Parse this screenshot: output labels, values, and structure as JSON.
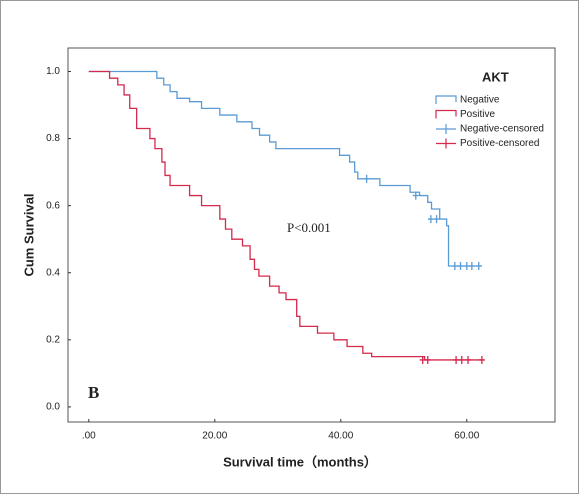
{
  "chart_data": {
    "type": "step",
    "label": "B",
    "annotation": "P<0.001",
    "xlabel": "Survival time（months）",
    "ylabel": "Cum Survival",
    "legend_title": "AKT",
    "legend_position": "upper right",
    "xlim": [
      -3.3,
      74
    ],
    "ylim": [
      -0.045,
      1.07
    ],
    "xticks": [
      {
        "value": 0,
        "label": ".00"
      },
      {
        "value": 20,
        "label": "20.00"
      },
      {
        "value": 40,
        "label": "40.00"
      },
      {
        "value": 60,
        "label": "60.00"
      }
    ],
    "yticks": [
      {
        "value": 0,
        "label": "0.0"
      },
      {
        "value": 0.2,
        "label": "0.2"
      },
      {
        "value": 0.4,
        "label": "0.4"
      },
      {
        "value": 0.6,
        "label": "0.6"
      },
      {
        "value": 0.8,
        "label": "0.8"
      },
      {
        "value": 1,
        "label": "1.0"
      }
    ],
    "series": [
      {
        "name": "Negative",
        "color": "#5b9bd5",
        "kind": "step",
        "x": [
          0,
          10.8,
          11.9,
          12.9,
          14.0,
          16.0,
          17.9,
          20.8,
          23.5,
          25.9,
          27.1,
          28.7,
          29.7,
          39.8,
          41.4,
          42.2,
          42.7,
          46.2,
          51.0,
          52.5,
          53.8,
          54.4,
          55.7,
          56.8,
          57.1,
          62.4
        ],
        "values": [
          1.0,
          0.98,
          0.96,
          0.94,
          0.92,
          0.91,
          0.89,
          0.87,
          0.85,
          0.83,
          0.81,
          0.79,
          0.77,
          0.75,
          0.73,
          0.7,
          0.68,
          0.66,
          0.64,
          0.63,
          0.61,
          0.59,
          0.56,
          0.54,
          0.42,
          0.42
        ]
      },
      {
        "name": "Positive",
        "color": "#d42a4e",
        "kind": "step",
        "x": [
          0,
          3.3,
          4.6,
          5.6,
          6.5,
          7.6,
          9.7,
          10.5,
          11.6,
          12.1,
          12.9,
          16.0,
          17.9,
          20.8,
          21.7,
          22.7,
          24.4,
          25.6,
          26.3,
          27.0,
          28.7,
          30.2,
          31.3,
          33.0,
          33.5,
          36.3,
          38.9,
          41.0,
          43.5,
          44.9,
          53.3,
          62.7
        ],
        "values": [
          1.0,
          0.98,
          0.96,
          0.93,
          0.89,
          0.83,
          0.8,
          0.77,
          0.73,
          0.69,
          0.66,
          0.63,
          0.6,
          0.56,
          0.53,
          0.5,
          0.48,
          0.44,
          0.41,
          0.39,
          0.36,
          0.34,
          0.32,
          0.27,
          0.24,
          0.22,
          0.2,
          0.18,
          0.16,
          0.15,
          0.14,
          0.14
        ]
      },
      {
        "name": "Negative-censored",
        "color": "#5b9bd5",
        "kind": "censor",
        "x": [
          44.1,
          51.9,
          54.3,
          55.2,
          58.1,
          59.0,
          60.0,
          60.8,
          61.9
        ],
        "values": [
          0.68,
          0.63,
          0.56,
          0.56,
          0.42,
          0.42,
          0.42,
          0.42,
          0.42
        ]
      },
      {
        "name": "Positive-censored",
        "color": "#d42a4e",
        "kind": "censor",
        "x": [
          53.0,
          53.8,
          58.3,
          59.2,
          60.2,
          62.4
        ],
        "values": [
          0.14,
          0.14,
          0.14,
          0.14,
          0.14,
          0.14
        ]
      }
    ]
  }
}
